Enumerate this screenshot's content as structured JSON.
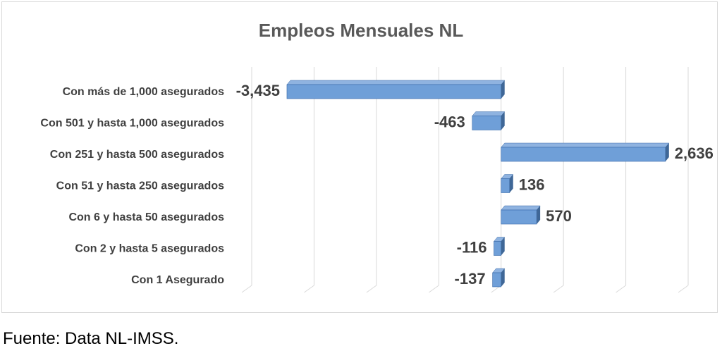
{
  "chart_data": {
    "type": "bar",
    "orientation": "horizontal",
    "title": "Empleos Mensuales NL",
    "categories": [
      "Con más de 1,000 asegurados",
      "Con 501 y hasta 1,000 asegurados",
      "Con 251 y hasta 500 asegurados",
      "Con 51 y hasta 250 asegurados",
      "Con 6 y hasta 50 asegurados",
      "Con 2 y hasta 5 asegurados",
      "Con 1 Asegurado"
    ],
    "values": [
      -3435,
      -463,
      2636,
      136,
      570,
      -116,
      -137
    ],
    "value_labels": [
      "-3,435",
      "-463",
      "2,636",
      "136",
      "570",
      "-116",
      "-137"
    ],
    "xlim": [
      -4000,
      3000
    ],
    "grid": true,
    "legend": "none",
    "colors": {
      "bar_front": "#6f9fd8",
      "bar_side": "#3f6797",
      "bar_top": "#8fb3e0",
      "bar_border": "#3a6aa8",
      "title": "#595959",
      "labels": "#404040",
      "gridline": "#d9d9d9"
    }
  },
  "source_note": "Fuente: Data NL-IMSS."
}
